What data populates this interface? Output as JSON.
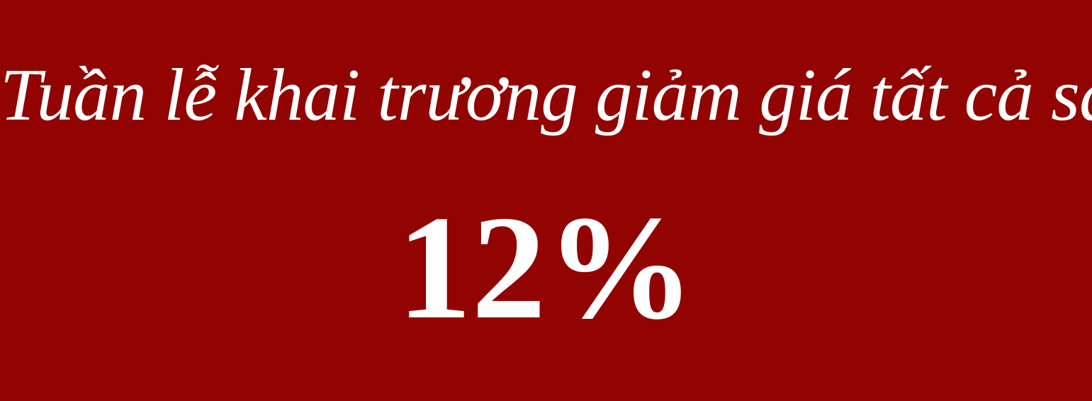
{
  "banner": {
    "headline": "Tuần lễ khai trương giảm giá tất cả sản phẩm",
    "discount": "12%",
    "background_color": "#920402",
    "text_color": "#ffffff"
  }
}
